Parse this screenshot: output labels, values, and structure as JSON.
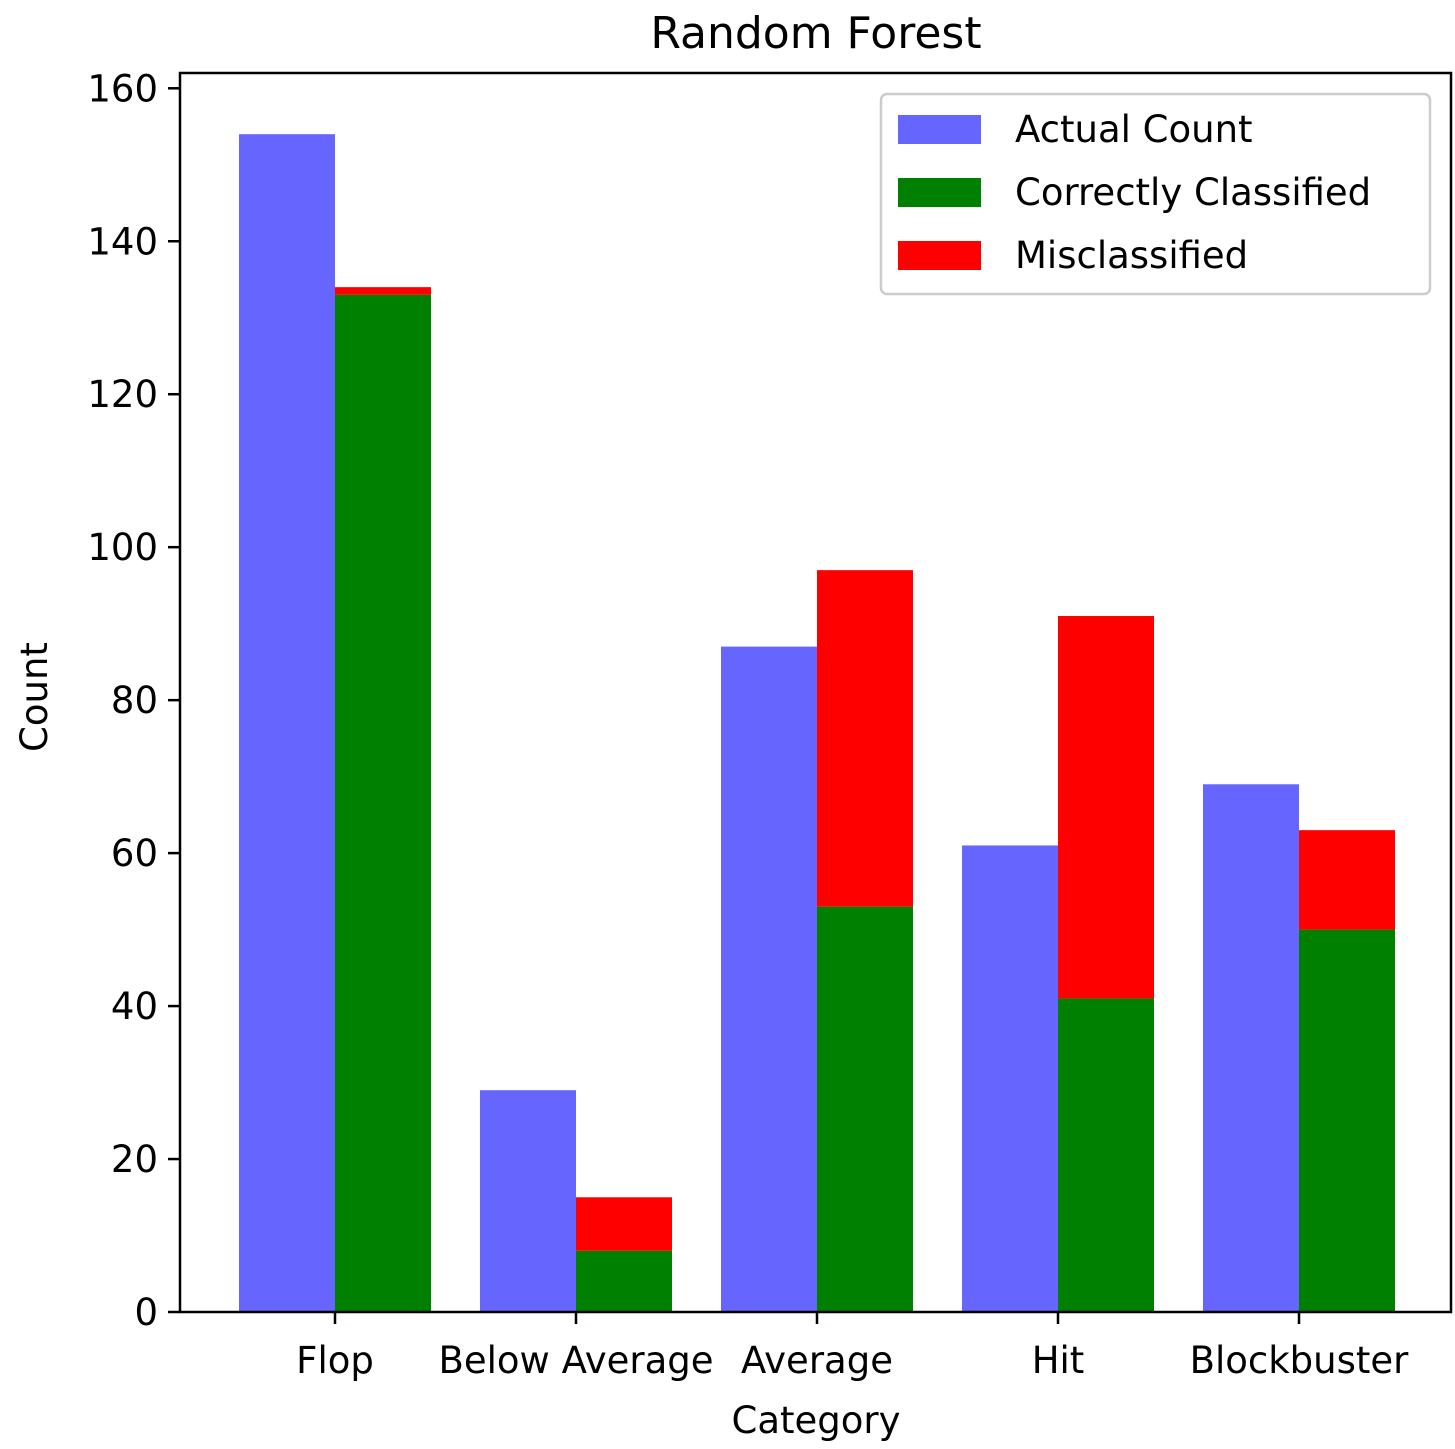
{
  "chart_data": {
    "type": "bar",
    "title": "Random Forest",
    "xlabel": "Category",
    "ylabel": "Count",
    "ylim": [
      0,
      162
    ],
    "yticks": [
      0,
      20,
      40,
      60,
      80,
      100,
      120,
      140,
      160
    ],
    "categories": [
      "Flop",
      "Below Average",
      "Average",
      "Hit",
      "Blockbuster"
    ],
    "series": [
      {
        "name": "Actual Count",
        "color": "#6666ff",
        "values": [
          154,
          29,
          87,
          61,
          69
        ]
      },
      {
        "name": "Correctly Classified",
        "color": "#008000",
        "values": [
          133,
          8,
          53,
          41,
          50
        ]
      },
      {
        "name": "Misclassified",
        "color": "#ff0000",
        "values": [
          1,
          7,
          44,
          50,
          13
        ],
        "stacked_on": "Correctly Classified"
      }
    ],
    "legend_position": "top-right",
    "grid": false
  }
}
